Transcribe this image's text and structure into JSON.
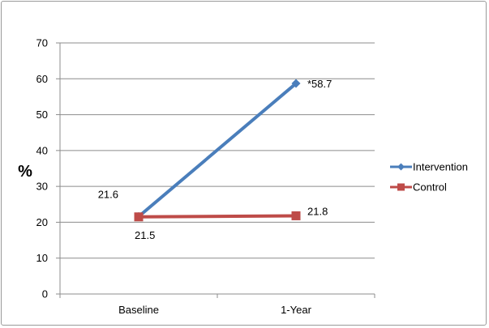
{
  "chart_data": {
    "type": "line",
    "categories": [
      "Baseline",
      "1-Year"
    ],
    "series": [
      {
        "name": "Intervention",
        "values": [
          21.6,
          58.7
        ],
        "color": "#4a7ebb",
        "marker": "diamond",
        "labels": [
          "21.6",
          "*58.7"
        ]
      },
      {
        "name": "Control",
        "values": [
          21.5,
          21.8
        ],
        "color": "#be4b48",
        "marker": "square",
        "labels": [
          "21.5",
          "21.8"
        ]
      }
    ],
    "title": "",
    "xlabel": "",
    "ylabel": "%",
    "ylim": [
      0,
      70
    ],
    "yticks": [
      0,
      10,
      20,
      30,
      40,
      50,
      60,
      70
    ],
    "grid": true,
    "legend": "right"
  }
}
